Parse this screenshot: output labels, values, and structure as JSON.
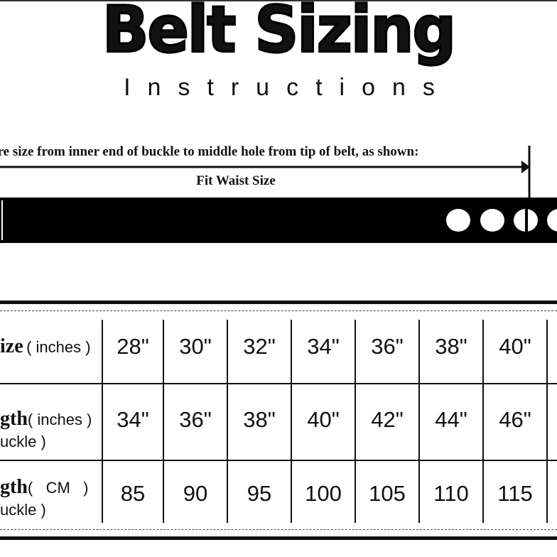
{
  "header": {
    "title": "Belt Sizing",
    "subtitle": "Instructions"
  },
  "diagram": {
    "instruction": "ure size from inner end of buckle to middle hole from tip of belt, as shown:",
    "arrow_label": "Fit Waist Size"
  },
  "table": {
    "rows": [
      {
        "label_bold": "ize",
        "label_unit": "( inches )",
        "label_sub": "",
        "values": [
          "28\"",
          "30\"",
          "32\"",
          "34\"",
          "36\"",
          "38\"",
          "40\""
        ]
      },
      {
        "label_bold": "gth",
        "label_unit": "( inches )",
        "label_sub": "uckle )",
        "values": [
          "34\"",
          "36\"",
          "38\"",
          "40\"",
          "42\"",
          "44\"",
          "46\""
        ]
      },
      {
        "label_bold": "gth",
        "label_unit": "(   CM   )",
        "label_sub": "uckle )",
        "values": [
          "85",
          "90",
          "95",
          "100",
          "105",
          "110",
          "115"
        ]
      }
    ]
  }
}
